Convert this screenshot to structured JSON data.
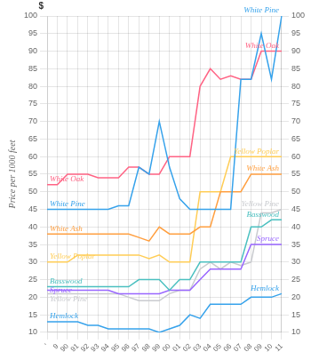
{
  "chart_data": {
    "type": "line",
    "y_label": "Price per 1000 feet",
    "annotations": [
      "$"
    ],
    "categories": [
      "'",
      "9",
      "90",
      "91",
      "92",
      "93",
      "94",
      "95",
      "96",
      "97",
      "98",
      "99",
      "00",
      "01",
      "02",
      "03",
      "04",
      "05",
      "06",
      "07",
      "08",
      "09",
      "10",
      "11"
    ],
    "series": [
      {
        "name": "White Pine",
        "values": [
          45,
          45,
          45,
          45,
          45,
          45,
          45,
          46,
          46,
          57,
          55,
          70,
          57,
          48,
          45,
          45,
          45,
          45,
          45,
          82,
          82,
          95,
          82,
          100
        ]
      },
      {
        "name": "White Oak",
        "values": [
          52,
          52,
          55,
          55,
          55,
          54,
          54,
          54,
          57,
          57,
          55,
          55,
          60,
          60,
          60,
          80,
          85,
          82,
          83,
          82,
          82,
          90,
          90,
          90
        ]
      },
      {
        "name": "White Ash",
        "values": [
          38,
          38,
          38,
          38,
          38,
          38,
          38,
          38,
          38,
          37,
          36,
          40,
          38,
          38,
          38,
          40,
          40,
          50,
          50,
          50,
          55,
          55,
          55,
          55
        ]
      },
      {
        "name": "Yellow Poplar",
        "values": [
          30,
          30,
          30,
          32,
          32,
          32,
          32,
          32,
          32,
          32,
          31,
          32,
          30,
          30,
          30,
          50,
          50,
          50,
          60,
          60,
          60,
          60,
          60,
          60
        ]
      },
      {
        "name": "Basswood",
        "values": [
          23,
          23,
          23,
          23,
          23,
          23,
          23,
          23,
          23,
          25,
          25,
          25,
          22,
          25,
          25,
          30,
          30,
          30,
          30,
          30,
          40,
          40,
          42,
          42
        ]
      },
      {
        "name": "Spruce",
        "values": [
          22,
          22,
          22,
          22,
          22,
          22,
          22,
          21,
          21,
          21,
          21,
          21,
          22,
          22,
          22,
          25,
          28,
          28,
          28,
          28,
          35,
          35,
          35,
          35
        ]
      },
      {
        "name": "Yellow Pine",
        "values": [
          21,
          21,
          21,
          21,
          21,
          21,
          21,
          21,
          20,
          19,
          19,
          19,
          21,
          22,
          22,
          28,
          30,
          28,
          30,
          29,
          30,
          44,
          44,
          45
        ]
      },
      {
        "name": "Hemlock",
        "values": [
          13,
          13,
          13,
          13,
          12,
          12,
          11,
          11,
          11,
          11,
          11,
          10,
          11,
          12,
          15,
          14,
          18,
          18,
          18,
          18,
          20,
          20,
          20,
          21
        ]
      }
    ],
    "ylim": [
      10,
      100
    ],
    "yticks": [
      10,
      15,
      20,
      25,
      30,
      35,
      40,
      45,
      50,
      55,
      60,
      65,
      70,
      75,
      80,
      85,
      90,
      95,
      100
    ],
    "y2lim": [
      10,
      100
    ],
    "y2ticks": [
      10,
      15,
      20,
      25,
      30,
      35,
      40,
      45,
      50,
      55,
      60,
      65,
      70,
      75,
      80,
      85,
      90,
      95,
      100
    ],
    "grid": true
  }
}
